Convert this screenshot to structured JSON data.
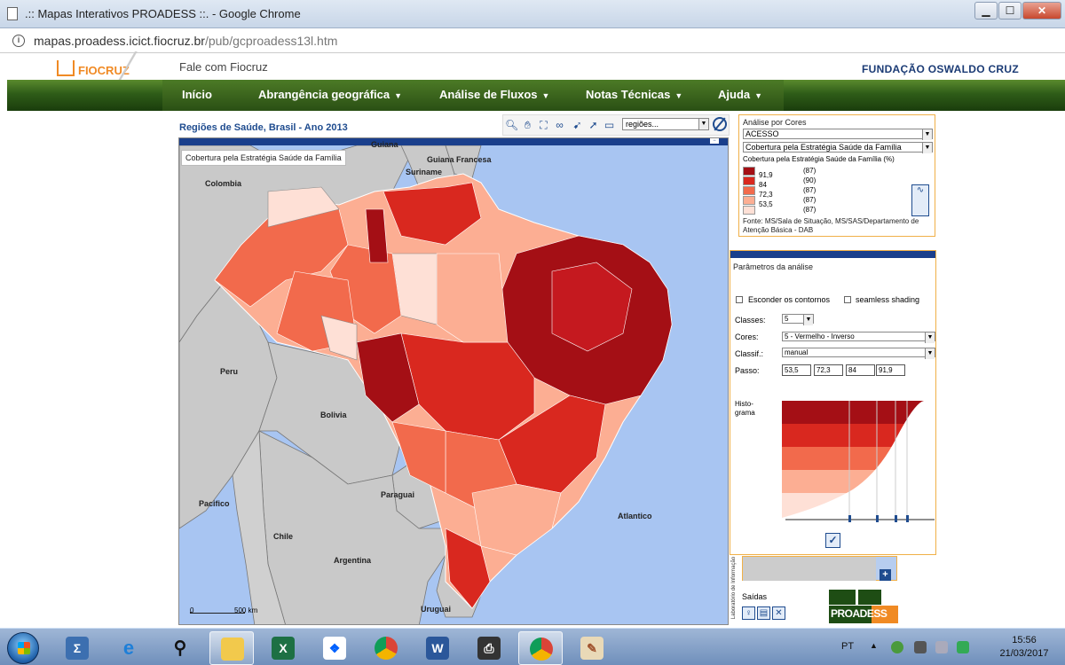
{
  "window": {
    "title": ".:: Mapas Interativos PROADESS ::. - Google Chrome",
    "minimize": "▁",
    "maximize": "☐",
    "close": "✕"
  },
  "browser": {
    "url_host": "mapas.proadess.icict.fiocruz.br",
    "url_path": "/pub/gcproadess13l.htm"
  },
  "site": {
    "logo_text": "FIOCRUZ",
    "contact_link": "Fale com Fiocruz",
    "org_name": "FUNDAÇÃO OSWALDO CRUZ"
  },
  "nav": {
    "items": [
      {
        "label": "Início",
        "has_caret": false
      },
      {
        "label": "Abrangência geográfica",
        "has_caret": true
      },
      {
        "label": "Análise de Fluxos",
        "has_caret": true
      },
      {
        "label": "Notas Técnicas",
        "has_caret": true
      },
      {
        "label": "Ajuda",
        "has_caret": true
      }
    ]
  },
  "map": {
    "title": "Regiões de Saúde, Brasil - Ano 2013",
    "layer_label": "Cobertura pela Estratégia Saúde da Família",
    "region_select": "regiões...",
    "countries": [
      {
        "name": "Guiana"
      },
      {
        "name": "Guiana Francesa"
      },
      {
        "name": "Suriname"
      },
      {
        "name": "Colombia"
      },
      {
        "name": "Peru"
      },
      {
        "name": "Bolivia"
      },
      {
        "name": "Paraguai"
      },
      {
        "name": "Pacifico"
      },
      {
        "name": "Chile"
      },
      {
        "name": "Argentina"
      },
      {
        "name": "Uruguai"
      },
      {
        "name": "Atlantico"
      }
    ],
    "scale_zero": "0",
    "scale_dist": "500 km"
  },
  "legend": {
    "title": "Análise por Cores",
    "indicator_group": "ACESSO",
    "indicator": "Cobertura pela Estratégia Saúde da Família",
    "subtitle": "Cobertura pela Estratégia Saúde da Família (%)",
    "classes": [
      {
        "value": "91,9",
        "count": "(87)",
        "color": "#a40f15"
      },
      {
        "value": "84",
        "count": "(90)",
        "color": "#d9281f"
      },
      {
        "value": "72,3",
        "count": "(87)",
        "color": "#f26a4c"
      },
      {
        "value": "53,5",
        "count": "(87)",
        "color": "#fcae93"
      },
      {
        "value": "",
        "count": "(87)",
        "color": "#fee0d6"
      }
    ],
    "source": "Fonte: MS/Sala de Situação, MS/SAS/Departamento de Atenção Básica - DAB"
  },
  "params": {
    "title": "Parâmetros da análise",
    "hide_contours": "Esconder os contornos",
    "seamless": "seamless shading",
    "classes_label": "Classes:",
    "classes_value": "5",
    "colors_label": "Cores:",
    "colors_value": "5 - Vermelho - Inverso",
    "classif_label": "Classif.:",
    "classif_value": "manual",
    "step_label": "Passo:",
    "steps": [
      "53,5",
      "72,3",
      "84",
      "91,9"
    ],
    "histogram_label": "Histo-\ngrama",
    "ok": "✓"
  },
  "outputs": {
    "vertical_label": "Laboratório de Informação",
    "saidas": "Saídas",
    "proadess": "PROADESS"
  },
  "taskbar": {
    "apps": [
      "sigma-icon",
      "ie-icon",
      "search-icon",
      "folder-icon",
      "excel-icon",
      "dropbox-icon",
      "chrome-icon",
      "word-icon",
      "printer-icon",
      "chrome-icon-2",
      "paint-icon"
    ],
    "language": "PT",
    "time": "15:56",
    "date": "21/03/2017"
  }
}
